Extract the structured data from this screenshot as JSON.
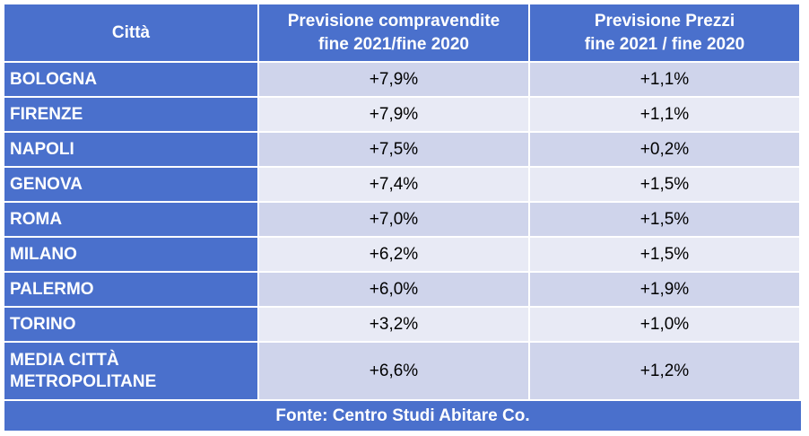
{
  "table": {
    "header": [
      [
        "Città"
      ],
      [
        "Previsione compravendite",
        "fine 2021/fine 2020"
      ],
      [
        "Previsione Prezzi",
        "fine 2021 / fine 2020"
      ]
    ],
    "rows": [
      [
        "BOLOGNA",
        "+7,9%",
        "+1,1%"
      ],
      [
        "FIRENZE",
        "+7,9%",
        "+1,1%"
      ],
      [
        "NAPOLI",
        "+7,5%",
        "+0,2%"
      ],
      [
        "GENOVA",
        "+7,4%",
        "+1,5%"
      ],
      [
        "ROMA",
        "+7,0%",
        "+1,5%"
      ],
      [
        "MILANO",
        "+6,2%",
        "+1,5%"
      ],
      [
        "PALERMO",
        "+6,0%",
        "+1,9%"
      ],
      [
        "TORINO",
        "+3,2%",
        "+1,0%"
      ],
      [
        "MEDIA CITTÀ METROPOLITANE",
        "+6,6%",
        "+1,2%"
      ]
    ],
    "footer": "Fonte: Centro Studi Abitare Co."
  }
}
